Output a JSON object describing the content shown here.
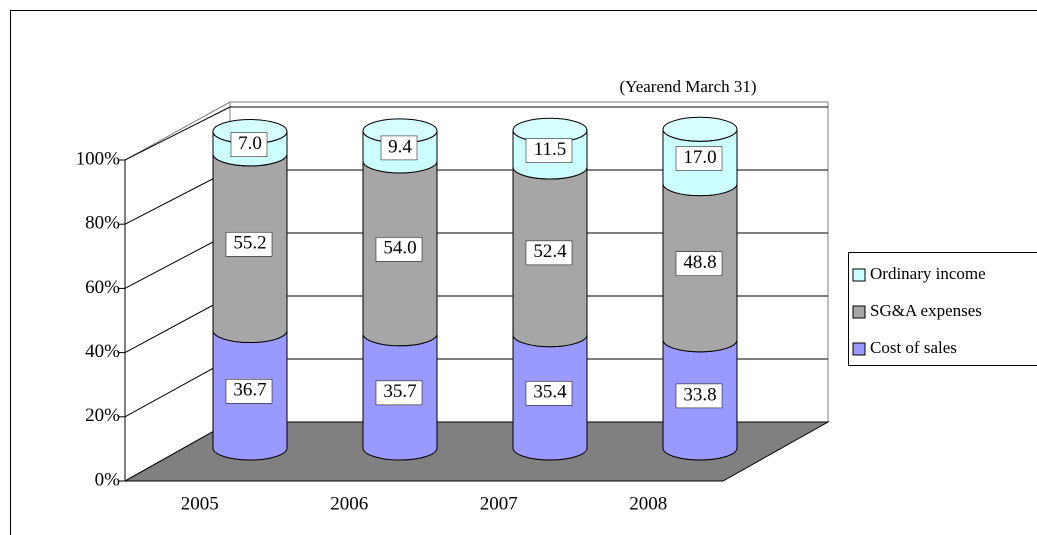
{
  "chart_data": {
    "type": "stacked-cylinder",
    "subtitle": "(Yearend March 31)",
    "categories": [
      "2005",
      "2006",
      "2007",
      "2008"
    ],
    "series": [
      {
        "name": "Cost of sales",
        "color": "#9999ff",
        "values": [
          36.7,
          35.7,
          35.4,
          33.8
        ],
        "value_labels": [
          "36.7",
          "35.7",
          "35.4",
          "33.8"
        ]
      },
      {
        "name": "SG&A expenses",
        "color": "#a6a6a6",
        "values": [
          55.2,
          54.0,
          52.4,
          48.8
        ],
        "value_labels": [
          "55.2",
          "54.0",
          "52.4",
          "48.8"
        ]
      },
      {
        "name": "Ordinary income",
        "color": "#ccffff",
        "values": [
          7.0,
          9.4,
          11.5,
          17.0
        ],
        "value_labels": [
          "7.0",
          "9.4",
          "11.5",
          "17.0"
        ]
      }
    ],
    "ylim": [
      0,
      100
    ],
    "yticks": [
      {
        "value": 0,
        "label": "0%"
      },
      {
        "value": 20,
        "label": "20%"
      },
      {
        "value": 40,
        "label": "40%"
      },
      {
        "value": 60,
        "label": "60%"
      },
      {
        "value": 80,
        "label": "80%"
      },
      {
        "value": 100,
        "label": "100%"
      }
    ],
    "grid": true,
    "legend": "right"
  }
}
